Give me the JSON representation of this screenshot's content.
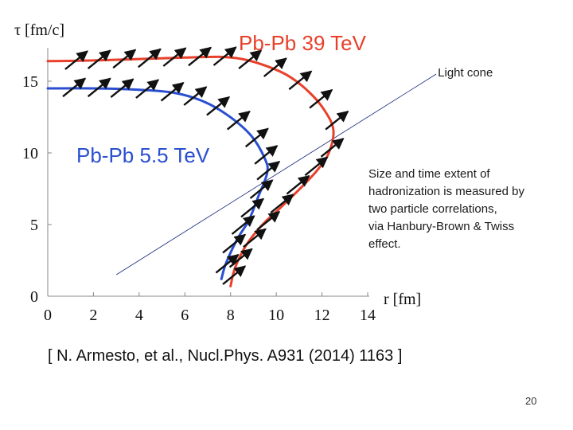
{
  "chart_data": {
    "type": "line",
    "title": "",
    "xlabel": "r [fm]",
    "ylabel": "τ [fm/c]",
    "xlim": [
      0,
      14
    ],
    "ylim": [
      0,
      19
    ],
    "x_ticks": [
      "0",
      "2",
      "4",
      "6",
      "8",
      "10",
      "12",
      "14"
    ],
    "y_ticks": [
      "0",
      "5",
      "10",
      "15"
    ],
    "grid": false,
    "series": [
      {
        "name": "Pb-Pb 39 TeV",
        "color": "#e8402a",
        "points": [
          [
            0,
            16.4
          ],
          [
            2,
            16.45
          ],
          [
            4,
            16.55
          ],
          [
            6,
            16.65
          ],
          [
            7.5,
            16.7
          ],
          [
            8.5,
            16.55
          ],
          [
            9.5,
            16.1
          ],
          [
            10.5,
            15.4
          ],
          [
            11.4,
            14.3
          ],
          [
            12.1,
            13.0
          ],
          [
            12.5,
            11.6
          ],
          [
            12.3,
            10.0
          ],
          [
            11.8,
            8.8
          ],
          [
            11.1,
            7.6
          ],
          [
            10.2,
            6.2
          ],
          [
            9.4,
            5.0
          ],
          [
            8.7,
            3.6
          ],
          [
            8.2,
            2.0
          ],
          [
            8.0,
            0.7
          ]
        ]
      },
      {
        "name": "Pb-Pb 5.5 TeV",
        "color": "#2a4fd0",
        "points": [
          [
            0,
            14.5
          ],
          [
            2,
            14.5
          ],
          [
            4,
            14.4
          ],
          [
            5.5,
            14.2
          ],
          [
            6.8,
            13.6
          ],
          [
            7.9,
            12.6
          ],
          [
            8.9,
            11.2
          ],
          [
            9.5,
            9.6
          ],
          [
            9.6,
            8.6
          ],
          [
            9.2,
            6.9
          ],
          [
            8.8,
            5.3
          ],
          [
            8.3,
            4.0
          ],
          [
            7.8,
            2.3
          ],
          [
            7.6,
            1.2
          ]
        ]
      }
    ],
    "arrows": [
      {
        "series": "Pb-Pb 39 TeV",
        "x": [
          1.2,
          2.2,
          3.3,
          4.4,
          5.5,
          6.6,
          7.7,
          8.8,
          9.9,
          11.0,
          11.9,
          12.6,
          12.4,
          11.7,
          10.9,
          10.2,
          9.6,
          9.0,
          8.4,
          8.1
        ],
        "y": [
          16.4,
          16.45,
          16.5,
          16.55,
          16.62,
          16.66,
          16.68,
          16.45,
          15.9,
          15.0,
          13.7,
          12.2,
          10.3,
          9.0,
          7.7,
          6.4,
          5.2,
          4.0,
          2.6,
          1.4
        ]
      },
      {
        "series": "Pb-Pb 5.5 TeV",
        "x": [
          1.1,
          2.2,
          3.2,
          4.3,
          5.4,
          6.4,
          7.4,
          8.3,
          9.1,
          9.5,
          9.6,
          9.3,
          8.9,
          8.5,
          8.1,
          7.8
        ],
        "y": [
          14.5,
          14.5,
          14.45,
          14.4,
          14.2,
          13.9,
          13.2,
          12.2,
          11.0,
          9.8,
          8.7,
          7.4,
          6.1,
          4.9,
          3.6,
          2.2
        ]
      }
    ],
    "arrow_style": {
      "color": "#111111",
      "direction_degrees": 39
    },
    "light_cone": {
      "label": "Light cone",
      "from": [
        3,
        1.5
      ],
      "to": [
        17,
        15.5
      ]
    },
    "series_labels": [
      {
        "text": "Pb-Pb 39 TeV",
        "color": "#e8402a"
      },
      {
        "text": "Pb-Pb 5.5 TeV",
        "color": "#2a4fd0"
      }
    ]
  },
  "annotation": {
    "lines": [
      "Size and  time extent of",
      "hadronization is measured by",
      "two particle correlations,",
      "via Hanbury-Brown & Twiss",
      "effect."
    ]
  },
  "citation": "[ N. Armesto, et al., Nucl.Phys. A931 (2014) 1163 ]",
  "slide_number": "20"
}
